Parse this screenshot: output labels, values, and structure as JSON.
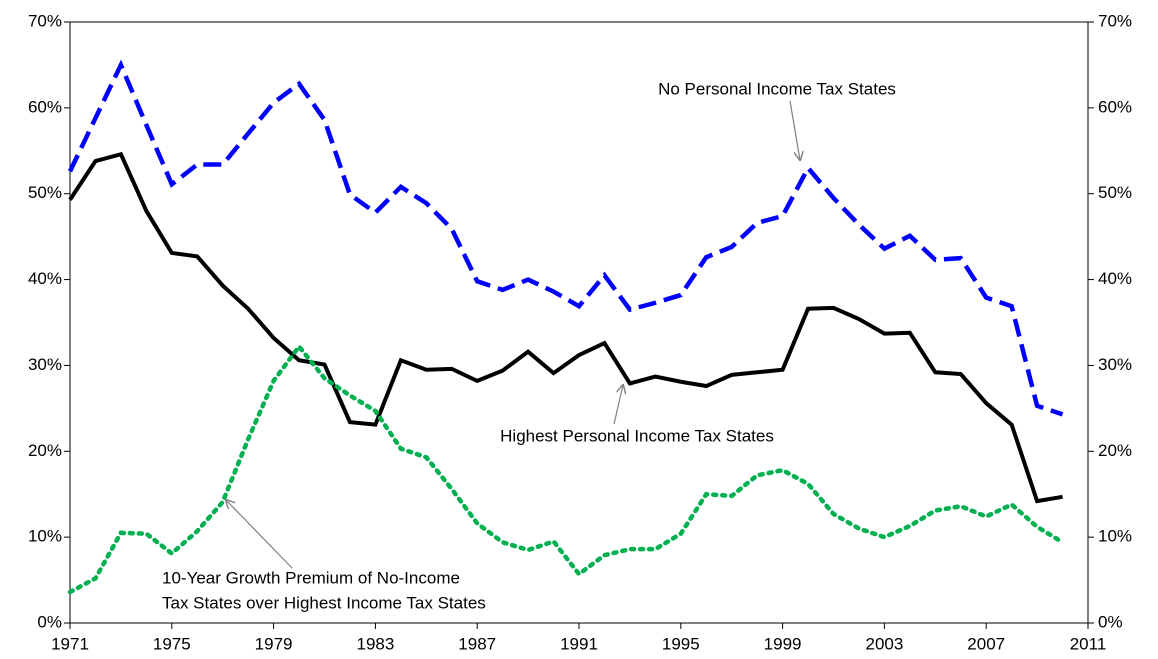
{
  "chart_data": {
    "type": "line",
    "x": [
      1971,
      1972,
      1973,
      1974,
      1975,
      1976,
      1977,
      1978,
      1979,
      1980,
      1981,
      1982,
      1983,
      1984,
      1985,
      1986,
      1987,
      1988,
      1989,
      1990,
      1991,
      1992,
      1993,
      1994,
      1995,
      1996,
      1997,
      1998,
      1999,
      2000,
      2001,
      2002,
      2003,
      2004,
      2005,
      2006,
      2007,
      2008,
      2009,
      2010
    ],
    "series": [
      {
        "name": "No Personal Income Tax States",
        "color": "#0000ff",
        "dash": "dashed",
        "values": [
          52.6,
          58.8,
          65,
          58,
          51.1,
          53.4,
          53.4,
          57,
          60.6,
          62.8,
          58.6,
          49.9,
          47.8,
          50.8,
          48.9,
          45.9,
          39.8,
          38.8,
          40,
          38.6,
          36.9,
          40.5,
          36.5,
          37.3,
          38.2,
          42.6,
          43.8,
          46.6,
          47.4,
          53,
          49.5,
          46.4,
          43.6,
          45.1,
          42.3,
          42.5,
          37.9,
          36.9,
          25.3,
          24.3
        ]
      },
      {
        "name": "Highest Personal Income Tax States",
        "color": "#000000",
        "dash": "solid",
        "values": [
          49.3,
          53.8,
          54.6,
          48,
          43.1,
          42.7,
          39.3,
          36.6,
          33.2,
          30.6,
          30.1,
          23.4,
          23.1,
          30.6,
          29.5,
          29.6,
          28.2,
          29.4,
          31.6,
          29.1,
          31.2,
          32.6,
          27.9,
          28.7,
          28.1,
          27.6,
          28.9,
          29.2,
          29.5,
          36.6,
          36.7,
          35.4,
          33.7,
          33.8,
          29.2,
          29,
          25.6,
          23.1,
          14.2,
          14.7
        ]
      },
      {
        "name": [
          "10-Year Growth Premium of No-Income",
          "Tax States over Highest Income Tax States"
        ],
        "color": "#00b050",
        "dash": "dotted",
        "values": [
          3.6,
          5.2,
          10.5,
          10.4,
          8.1,
          10.7,
          14.1,
          21.4,
          28.2,
          32.2,
          28.5,
          26.5,
          24.7,
          20.3,
          19.3,
          15.6,
          11.6,
          9.4,
          8.5,
          9.5,
          5.7,
          7.9,
          8.6,
          8.6,
          10.4,
          15,
          14.8,
          17.2,
          17.8,
          16.2,
          12.7,
          11,
          10,
          11.3,
          13.1,
          13.6,
          12.4,
          13.8,
          11.2,
          9.4
        ]
      }
    ],
    "xlim": [
      1971,
      2011
    ],
    "xticks": [
      1971,
      1975,
      1979,
      1983,
      1987,
      1991,
      1995,
      1999,
      2003,
      2007,
      2011
    ],
    "ylim": [
      0,
      70
    ],
    "yticks": [
      {
        "value": 0,
        "label": "0%"
      },
      {
        "value": 10,
        "label": "10%"
      },
      {
        "value": 20,
        "label": "20%"
      },
      {
        "value": 30,
        "label": "30%"
      },
      {
        "value": 40,
        "label": "40%"
      },
      {
        "value": 50,
        "label": "50%"
      },
      {
        "value": 60,
        "label": "60%"
      },
      {
        "value": 70,
        "label": "70%"
      }
    ],
    "y2lim": [
      0,
      70
    ],
    "y2ticks": [
      {
        "value": 0,
        "label": "0%"
      },
      {
        "value": 10,
        "label": "10%"
      },
      {
        "value": 20,
        "label": "20%"
      },
      {
        "value": 30,
        "label": "30%"
      },
      {
        "value": 40,
        "label": "40%"
      },
      {
        "value": 50,
        "label": "50%"
      },
      {
        "value": 60,
        "label": "60%"
      },
      {
        "value": 70,
        "label": "70%"
      }
    ]
  }
}
